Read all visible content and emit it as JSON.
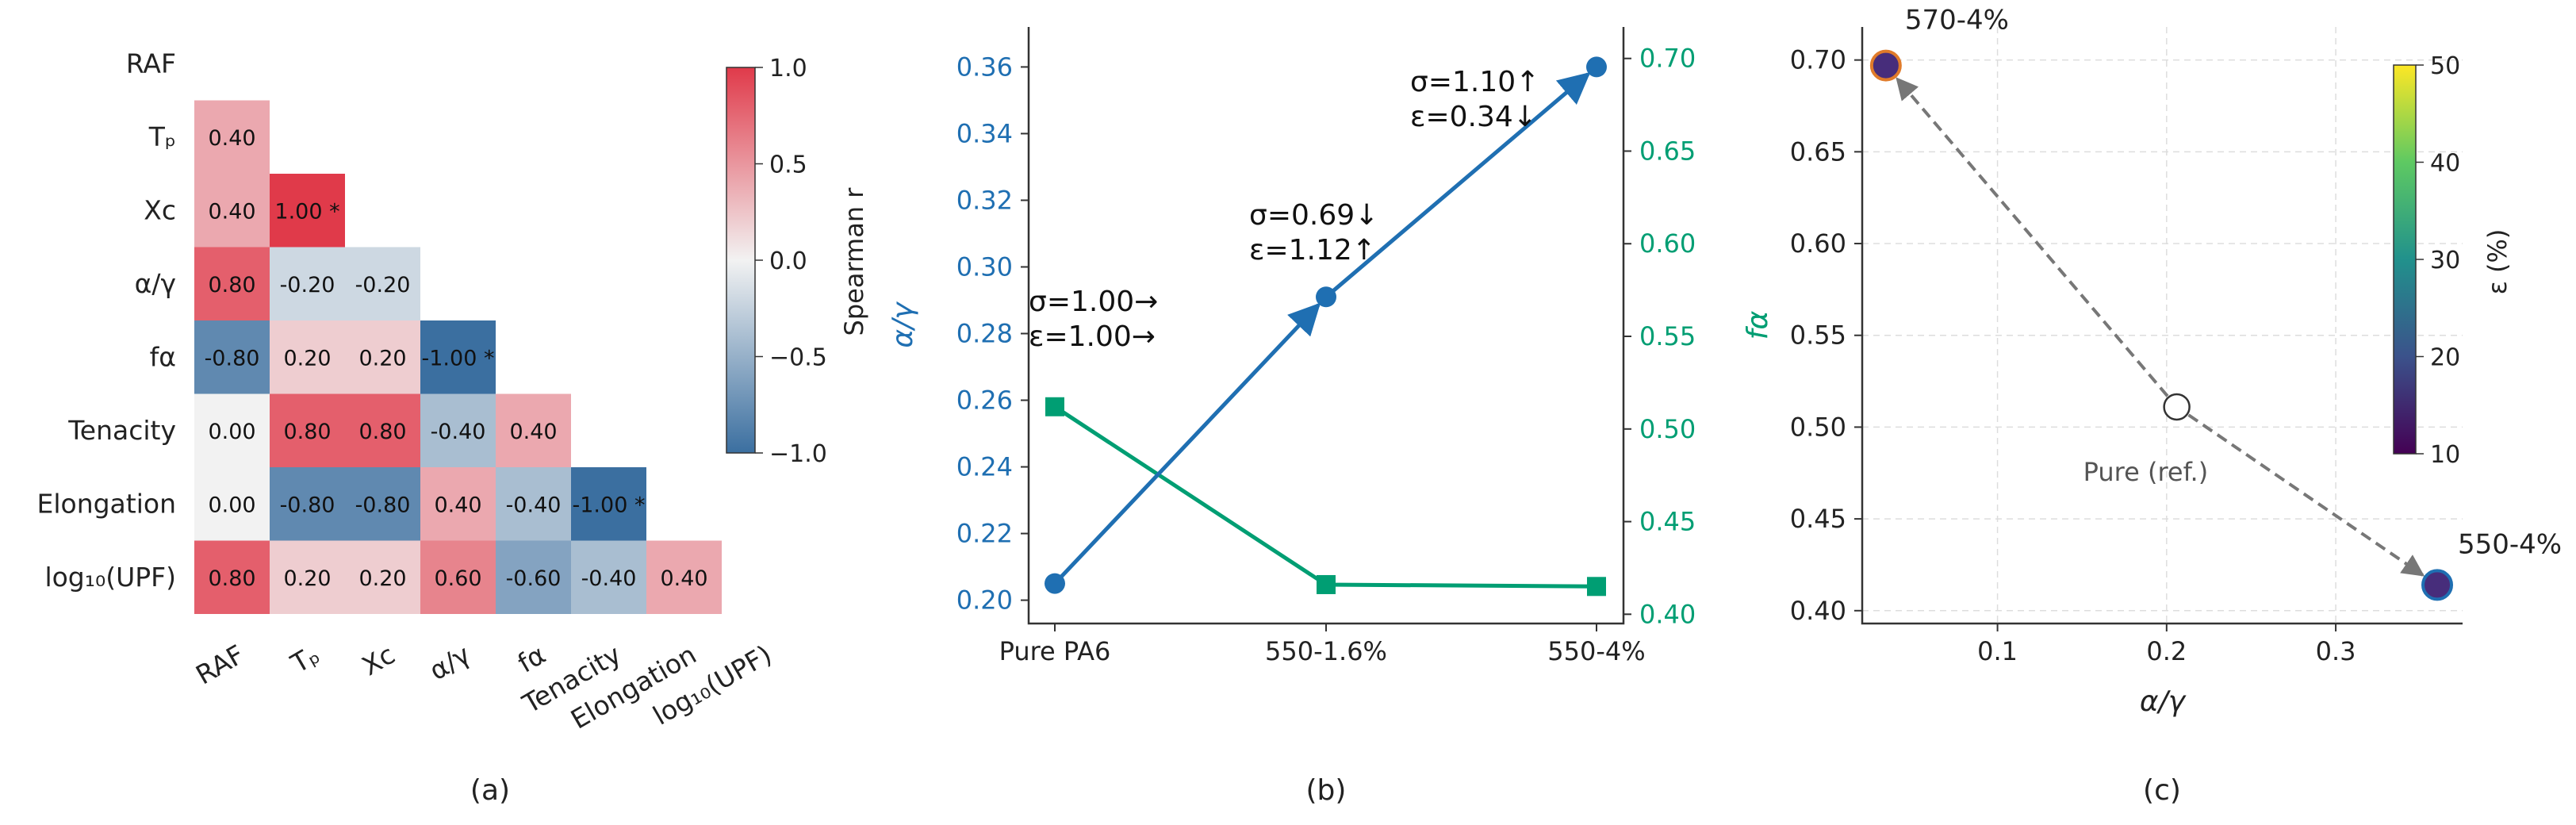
{
  "panels": {
    "a": "(a)",
    "b": "(b)",
    "c": "(c)"
  },
  "chart_data": [
    {
      "type": "heatmap",
      "title": "",
      "variables": [
        "RAF",
        "Tₚ",
        "Xᴄ",
        "α/γ",
        "fα",
        "Tenacity",
        "Elongation",
        "log₁₀(UPF)"
      ],
      "lower_triangle": [
        [],
        [
          0.4
        ],
        [
          0.4,
          1.0
        ],
        [
          0.8,
          -0.2,
          -0.2
        ],
        [
          -0.8,
          0.2,
          0.2,
          -1.0
        ],
        [
          0.0,
          0.8,
          0.8,
          -0.4,
          0.4
        ],
        [
          0.0,
          -0.8,
          -0.8,
          0.4,
          -0.4,
          -1.0
        ],
        [
          0.8,
          0.2,
          0.2,
          0.6,
          -0.6,
          -0.4,
          0.4
        ]
      ],
      "significant": [
        [
          2,
          1
        ],
        [
          4,
          3
        ],
        [
          6,
          5
        ]
      ],
      "colorbar": {
        "label": "Spearman r",
        "range": [
          -1.0,
          1.0
        ],
        "ticks": [
          "1.0",
          "0.5",
          "0.0",
          "−0.5",
          "−1.0"
        ],
        "low_color": "#3b6fa0",
        "mid_color": "#f2f2f2",
        "high_color": "#e03a4a"
      }
    },
    {
      "type": "line",
      "categories": [
        "Pure PA6",
        "550-1.6%",
        "550-4%"
      ],
      "series": [
        {
          "axis": "left",
          "values": [
            0.205,
            0.291,
            0.36
          ],
          "color": "#1f6fb2",
          "marker": "circle"
        },
        {
          "axis": "right",
          "values": [
            0.512,
            0.416,
            0.415
          ],
          "color": "#009e73",
          "marker": "square"
        }
      ],
      "ylabel_left": "α/γ",
      "ylabel_right": "fα",
      "ylim_left": [
        0.193,
        0.372
      ],
      "ylim_right": [
        0.395,
        0.717
      ],
      "yticks_left": [
        0.2,
        0.22,
        0.24,
        0.26,
        0.28,
        0.3,
        0.32,
        0.34,
        0.36
      ],
      "yticks_right": [
        0.4,
        0.45,
        0.5,
        0.55,
        0.6,
        0.65,
        0.7
      ],
      "annotations": [
        {
          "category": "Pure PA6",
          "lines": [
            "σ=1.00→",
            "ε=1.00→"
          ]
        },
        {
          "category": "550-1.6%",
          "lines": [
            "σ=0.69↓",
            "ε=1.12↑"
          ]
        },
        {
          "category": "550-4%",
          "lines": [
            "σ=1.10↑",
            "ε=0.34↓"
          ]
        }
      ]
    },
    {
      "type": "scatter",
      "xlabel": "α/γ",
      "ylabel": "fα",
      "xlim": [
        0.02,
        0.375
      ],
      "ylim": [
        0.393,
        0.718
      ],
      "xticks": [
        0.1,
        0.2,
        0.3
      ],
      "yticks": [
        0.4,
        0.45,
        0.5,
        0.55,
        0.6,
        0.65,
        0.7
      ],
      "grid": true,
      "points": [
        {
          "label": "570-4%",
          "x": 0.034,
          "y": 0.697,
          "epsilon": 11,
          "edge": "#e07b2a"
        },
        {
          "label": "550-4%",
          "x": 0.36,
          "y": 0.414,
          "epsilon": 12,
          "edge": "#1f6fb2"
        }
      ],
      "reference": {
        "label": "Pure (ref.)",
        "x": 0.206,
        "y": 0.511
      },
      "colorbar": {
        "label": "ε (%)",
        "range": [
          10,
          50
        ],
        "ticks": [
          10,
          20,
          30,
          40,
          50
        ],
        "colormap": "viridis"
      }
    }
  ]
}
